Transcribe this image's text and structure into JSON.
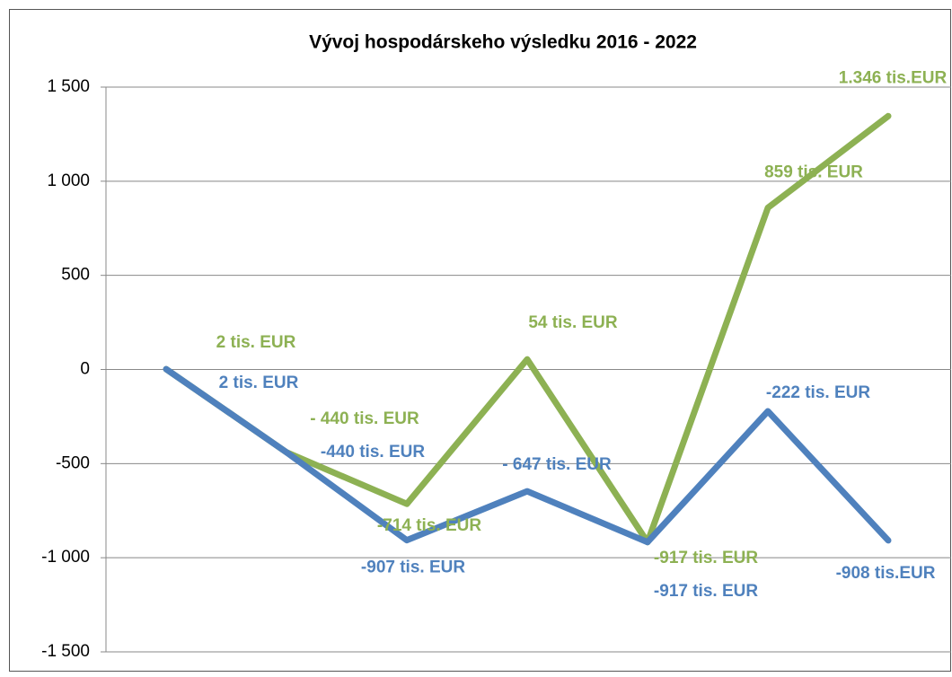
{
  "chart_data": {
    "type": "line",
    "title": "Vývoj hospodárskeho výsledku 2016 - 2022",
    "categories": [
      null,
      null,
      null,
      null,
      null,
      null,
      null
    ],
    "series": [
      {
        "name": null,
        "color": "#8db153",
        "values": [
          2,
          -440,
          -714,
          54,
          -917,
          859,
          1346
        ],
        "value_labels": [
          "2 tis. EUR",
          "- 440 tis. EUR",
          "-714 tis. EUR",
          "54 tis. EUR",
          "-917 tis. EUR",
          "859 tis. EUR",
          "1.346 tis.EUR"
        ]
      },
      {
        "name": null,
        "color": "#4f81bd",
        "values": [
          2,
          -440,
          -907,
          -647,
          -917,
          -222,
          -908
        ],
        "value_labels": [
          "2 tis. EUR",
          "-440 tis. EUR",
          "-907 tis. EUR",
          "- 647 tis. EUR",
          "-917 tis. EUR",
          "-222 tis. EUR",
          "-908 tis.EUR"
        ]
      }
    ],
    "ylim": [
      -1500,
      1500
    ],
    "yticks": [
      {
        "value": -1500,
        "label": "-1 500"
      },
      {
        "value": -1000,
        "label": "-1 000"
      },
      -500,
      0,
      500,
      {
        "value": 1000,
        "label": "1 000"
      },
      {
        "value": 1500,
        "label": "1 500"
      }
    ],
    "grid": true
  }
}
